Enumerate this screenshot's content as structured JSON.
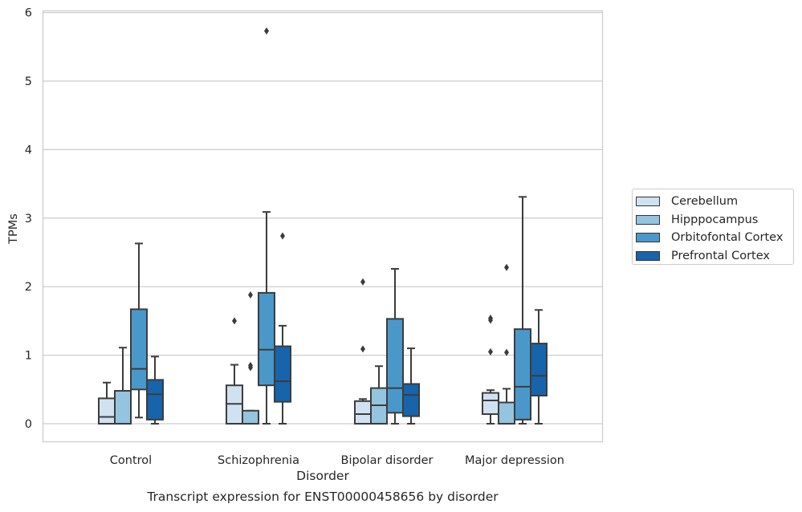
{
  "chart_data": {
    "type": "box",
    "ylabel": "TPMs",
    "xlabel": "Disorder",
    "ylim": [
      -0.28,
      6.05
    ],
    "yticks": [
      0,
      1,
      2,
      3,
      4,
      5,
      6
    ],
    "grid": true,
    "legend_position": "right",
    "categories": [
      "Control",
      "Schizophrenia",
      "Bipolar disorder",
      "Major depression"
    ],
    "series": [
      {
        "name": "Cerebellum",
        "color": "#d0e1f2",
        "boxes": [
          {
            "whisker_low": 0.0,
            "q1": 0.0,
            "median": 0.1,
            "q3": 0.37,
            "whisker_high": 0.6,
            "outliers": []
          },
          {
            "whisker_low": 0.0,
            "q1": 0.0,
            "median": 0.29,
            "q3": 0.56,
            "whisker_high": 0.86,
            "outliers": [
              1.5
            ]
          },
          {
            "whisker_low": 0.0,
            "q1": 0.0,
            "median": 0.14,
            "q3": 0.33,
            "whisker_high": 0.36,
            "outliers": [
              1.09,
              2.07
            ]
          },
          {
            "whisker_low": 0.0,
            "q1": 0.14,
            "median": 0.34,
            "q3": 0.45,
            "whisker_high": 0.49,
            "outliers": [
              1.05,
              1.51,
              1.54
            ]
          }
        ]
      },
      {
        "name": "Hipppocampus",
        "color": "#94c4df",
        "boxes": [
          {
            "whisker_low": 0.0,
            "q1": 0.0,
            "median": 0.0,
            "q3": 0.48,
            "whisker_high": 1.11,
            "outliers": []
          },
          {
            "whisker_low": 0.0,
            "q1": 0.0,
            "median": 0.0,
            "q3": 0.19,
            "whisker_high": 0.19,
            "outliers": [
              0.82,
              0.85,
              1.88
            ]
          },
          {
            "whisker_low": 0.0,
            "q1": 0.0,
            "median": 0.27,
            "q3": 0.52,
            "whisker_high": 0.84,
            "outliers": []
          },
          {
            "whisker_low": 0.0,
            "q1": 0.0,
            "median": 0.0,
            "q3": 0.31,
            "whisker_high": 0.51,
            "outliers": [
              1.04,
              2.28
            ]
          }
        ]
      },
      {
        "name": "Orbitofontal Cortex",
        "color": "#4a98c9",
        "boxes": [
          {
            "whisker_low": 0.09,
            "q1": 0.5,
            "median": 0.8,
            "q3": 1.67,
            "whisker_high": 2.63,
            "outliers": []
          },
          {
            "whisker_low": 0.0,
            "q1": 0.56,
            "median": 1.08,
            "q3": 1.91,
            "whisker_high": 3.09,
            "outliers": [
              5.73
            ]
          },
          {
            "whisker_low": 0.0,
            "q1": 0.16,
            "median": 0.52,
            "q3": 1.53,
            "whisker_high": 2.26,
            "outliers": []
          },
          {
            "whisker_low": 0.0,
            "q1": 0.06,
            "median": 0.54,
            "q3": 1.38,
            "whisker_high": 3.31,
            "outliers": []
          }
        ]
      },
      {
        "name": "Prefrontal Cortex",
        "color": "#1764ab",
        "boxes": [
          {
            "whisker_low": 0.0,
            "q1": 0.06,
            "median": 0.43,
            "q3": 0.64,
            "whisker_high": 0.98,
            "outliers": []
          },
          {
            "whisker_low": 0.0,
            "q1": 0.32,
            "median": 0.62,
            "q3": 1.13,
            "whisker_high": 1.43,
            "outliers": [
              2.74
            ]
          },
          {
            "whisker_low": 0.0,
            "q1": 0.11,
            "median": 0.42,
            "q3": 0.58,
            "whisker_high": 1.1,
            "outliers": []
          },
          {
            "whisker_low": 0.0,
            "q1": 0.41,
            "median": 0.7,
            "q3": 1.17,
            "whisker_high": 1.66,
            "outliers": []
          }
        ]
      }
    ]
  },
  "caption": "Transcript expression for ENST00000458656 by disorder"
}
